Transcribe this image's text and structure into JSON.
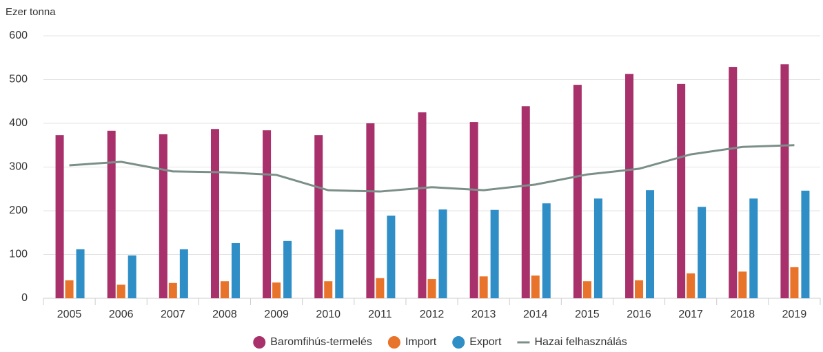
{
  "chart_data": {
    "type": "bar",
    "y_label": "Ezer tonna",
    "categories": [
      "2005",
      "2006",
      "2007",
      "2008",
      "2009",
      "2010",
      "2011",
      "2012",
      "2013",
      "2014",
      "2015",
      "2016",
      "2017",
      "2018",
      "2019"
    ],
    "series": [
      {
        "name": "Baromfihús-termelés",
        "color": "#a8316b",
        "values": [
          373,
          383,
          375,
          387,
          384,
          373,
          400,
          425,
          403,
          439,
          488,
          513,
          490,
          529,
          535
        ]
      },
      {
        "name": "Import",
        "color": "#e8732a",
        "values": [
          41,
          31,
          35,
          39,
          36,
          39,
          46,
          44,
          50,
          52,
          39,
          41,
          57,
          61,
          71
        ]
      },
      {
        "name": "Export",
        "color": "#2f8ec6",
        "values": [
          112,
          98,
          112,
          126,
          131,
          157,
          189,
          203,
          202,
          217,
          228,
          247,
          209,
          228,
          246
        ]
      },
      {
        "name": "Hazai felhasználás",
        "color": "#7b8f88",
        "type": "line",
        "values": [
          304,
          312,
          290,
          288,
          282,
          247,
          244,
          254,
          247,
          260,
          283,
          296,
          329,
          346,
          350
        ]
      }
    ],
    "ylim": [
      0,
      600
    ],
    "yticks": [
      0,
      100,
      200,
      300,
      400,
      500,
      600
    ],
    "grid": true,
    "legend": "bottom"
  }
}
